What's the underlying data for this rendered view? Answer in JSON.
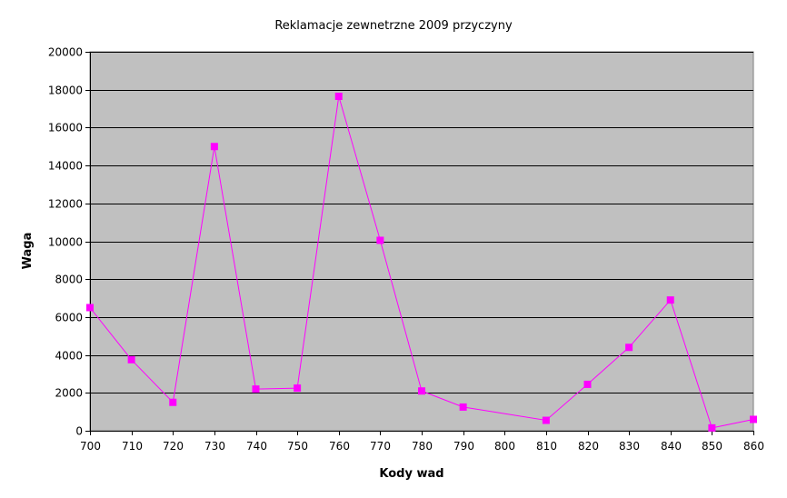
{
  "chart_data": {
    "type": "line",
    "title": "Reklamacje zewnetrzne 2009 przyczyny",
    "xlabel": "Kody wad",
    "ylabel": "Waga",
    "x": [
      700,
      710,
      720,
      730,
      740,
      750,
      760,
      770,
      780,
      790,
      800,
      810,
      820,
      830,
      840,
      850,
      860
    ],
    "x_ticks": [
      "700",
      "710",
      "720",
      "730",
      "740",
      "750",
      "760",
      "770",
      "780",
      "790",
      "800",
      "810",
      "820",
      "830",
      "840",
      "850",
      "860"
    ],
    "y_ticks": [
      "0",
      "2000",
      "4000",
      "6000",
      "8000",
      "10000",
      "12000",
      "14000",
      "16000",
      "18000",
      "20000"
    ],
    "xlim": [
      700,
      860
    ],
    "ylim": [
      0,
      20000
    ],
    "grid": true,
    "series": [
      {
        "name": "",
        "color": "#ff00ff",
        "marker": "square",
        "points": [
          [
            700,
            6500
          ],
          [
            710,
            3750
          ],
          [
            720,
            1500
          ],
          [
            730,
            15000
          ],
          [
            740,
            2200
          ],
          [
            750,
            2250
          ],
          [
            760,
            17650
          ],
          [
            770,
            10050
          ],
          [
            780,
            2100
          ],
          [
            790,
            1250
          ],
          [
            810,
            550
          ],
          [
            820,
            2450
          ],
          [
            830,
            4400
          ],
          [
            840,
            6900
          ],
          [
            850,
            150
          ],
          [
            860,
            600
          ]
        ]
      }
    ],
    "plot_background": "#c0c0c0",
    "grid_color": "#000000"
  }
}
